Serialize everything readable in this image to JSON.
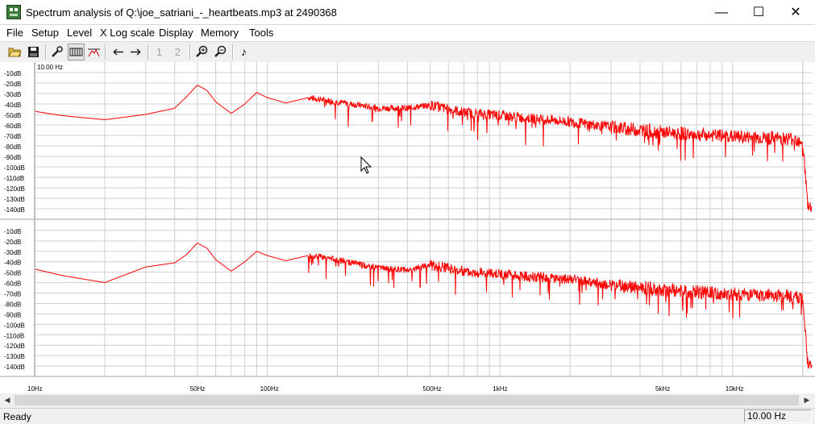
{
  "window": {
    "title": "Spectrum analysis of Q:\\joe_satriani_-_heartbeats.mp3 at 2490368",
    "minimize_glyph": "—",
    "maximize_glyph": "☐",
    "close_glyph": "✕"
  },
  "menu": [
    "File",
    "Setup",
    "Level",
    "X Log scale",
    "Display",
    "Memory",
    "Tools"
  ],
  "toolbar": {
    "open_icon": "folder-open-icon",
    "save_icon": "floppy-save-icon",
    "memory_1": "1",
    "memory_2": "2"
  },
  "chart_data": [
    {
      "type": "line",
      "channel": "top",
      "corner_label": "10.00 Hz",
      "x_scale": "log",
      "xlim": [
        10,
        22050
      ],
      "ylim": [
        -150,
        0
      ],
      "y_ticks": [
        "-10dB",
        "-20dB",
        "-30dB",
        "-40dB",
        "-50dB",
        "-60dB",
        "-70dB",
        "-80dB",
        "-90dB",
        "-100dB",
        "-110dB",
        "-120dB",
        "-130dB",
        "-140dB"
      ],
      "grid": true,
      "series_color": "#ff0000",
      "series": [
        {
          "x": [
            10,
            13,
            20,
            30,
            40,
            45,
            50,
            55,
            60,
            70,
            80,
            90,
            100,
            120,
            150,
            200,
            300,
            400,
            500,
            700,
            1000,
            2000,
            3000,
            5000,
            8000,
            12000,
            18000,
            20000,
            21000,
            22000
          ],
          "y": [
            -47,
            -51,
            -55,
            -50,
            -44,
            -33,
            -22,
            -27,
            -38,
            -49,
            -40,
            -29,
            -34,
            -39,
            -34,
            -38,
            -44,
            -44,
            -41,
            -48,
            -51,
            -57,
            -62,
            -67,
            -70,
            -72,
            -73,
            -75,
            -136,
            -140
          ]
        }
      ]
    },
    {
      "type": "line",
      "channel": "bottom",
      "x_scale": "log",
      "xlim": [
        10,
        22050
      ],
      "ylim": [
        -150,
        0
      ],
      "y_ticks": [
        "-10dB",
        "-20dB",
        "-30dB",
        "-40dB",
        "-50dB",
        "-60dB",
        "-70dB",
        "-80dB",
        "-90dB",
        "-100dB",
        "-110dB",
        "-120dB",
        "-130dB",
        "-140dB"
      ],
      "x_ticks": [
        {
          "label": "10Hz",
          "value": 10
        },
        {
          "label": "50Hz",
          "value": 50
        },
        {
          "label": "100Hz",
          "value": 100
        },
        {
          "label": "500Hz",
          "value": 500
        },
        {
          "label": "1kHz",
          "value": 1000
        },
        {
          "label": "5kHz",
          "value": 5000
        },
        {
          "label": "10kHz",
          "value": 10000
        }
      ],
      "grid": true,
      "series_color": "#ff0000",
      "series": [
        {
          "x": [
            10,
            13,
            20,
            30,
            40,
            45,
            50,
            55,
            60,
            70,
            80,
            90,
            100,
            120,
            150,
            200,
            300,
            400,
            500,
            700,
            1000,
            2000,
            3000,
            5000,
            8000,
            12000,
            18000,
            20000,
            21000,
            22000
          ],
          "y": [
            -47,
            -53,
            -60,
            -45,
            -41,
            -33,
            -22,
            -27,
            -38,
            -49,
            -40,
            -30,
            -34,
            -39,
            -34,
            -38,
            -46,
            -48,
            -43,
            -49,
            -52,
            -57,
            -62,
            -67,
            -70,
            -72,
            -73,
            -75,
            -136,
            -140
          ]
        }
      ]
    }
  ],
  "status": {
    "text": "Ready",
    "frequency": "10.00 Hz"
  }
}
